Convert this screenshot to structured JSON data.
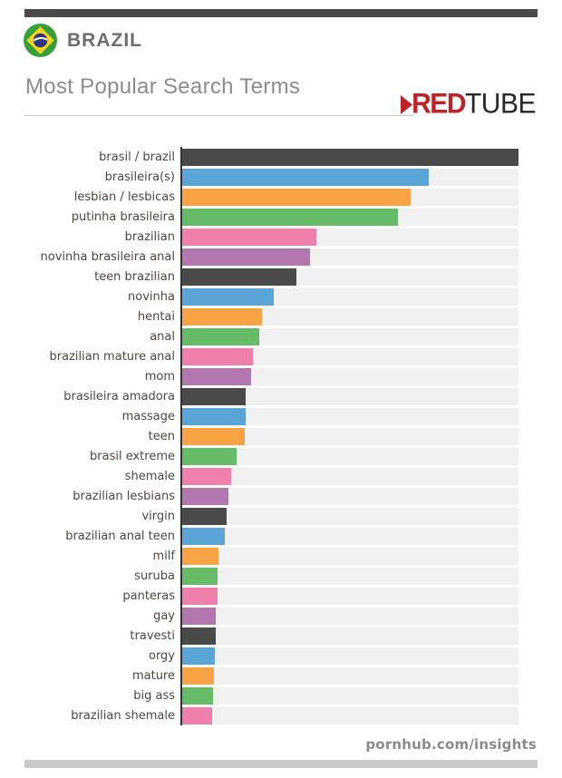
{
  "header": {
    "country_label": "BRAZIL",
    "title": "Most Popular Search Terms",
    "brand": {
      "red": "RED",
      "tube": "TUBE"
    }
  },
  "footer": {
    "site_label": "pornhub.com/insights"
  },
  "chart_data": {
    "type": "bar",
    "orientation": "horizontal",
    "title": "Most Popular Search Terms",
    "categories": [
      "brasil / brazil",
      "brasileira(s)",
      "lesbian / lesbicas",
      "putinha brasileira",
      "brazilian",
      "novinha brasileira anal",
      "teen brazilian",
      "novinha",
      "hentai",
      "anal",
      "brazilian mature anal",
      "mom",
      "brasileira amadora",
      "massage",
      "teen",
      "brasil extreme",
      "shemale",
      "brazilian lesbians",
      "virgin",
      "brazilian anal teen",
      "milf",
      "suruba",
      "panteras",
      "gay",
      "travesti",
      "orgy",
      "mature",
      "big ass",
      "brazilian shemale"
    ],
    "values": [
      100,
      73.2,
      67.8,
      64.2,
      39.8,
      37.9,
      33.9,
      27.1,
      23.6,
      23.0,
      21.1,
      20.6,
      19.0,
      19.0,
      18.7,
      16.3,
      14.6,
      13.8,
      13.3,
      12.7,
      10.8,
      10.6,
      10.6,
      10.0,
      10.0,
      9.8,
      9.5,
      9.2,
      8.9
    ],
    "value_note": "relative bar lengths, % of longest bar (no numeric axis shown)",
    "xlim": [
      0,
      100
    ],
    "grid": false,
    "legend": false,
    "bar_colors_cycle": [
      "#4a4a4a",
      "#5ba4d8",
      "#f8a346",
      "#66bb66",
      "#ef7fab",
      "#b277ae"
    ],
    "track_color": "#f0f0f0",
    "axis_color": "#333333"
  },
  "colors": {
    "top_bar": "#4a4a4a",
    "bottom_bar": "#c9c9c9",
    "brand_red": "#bf2227",
    "brand_dark": "#2a2627"
  }
}
